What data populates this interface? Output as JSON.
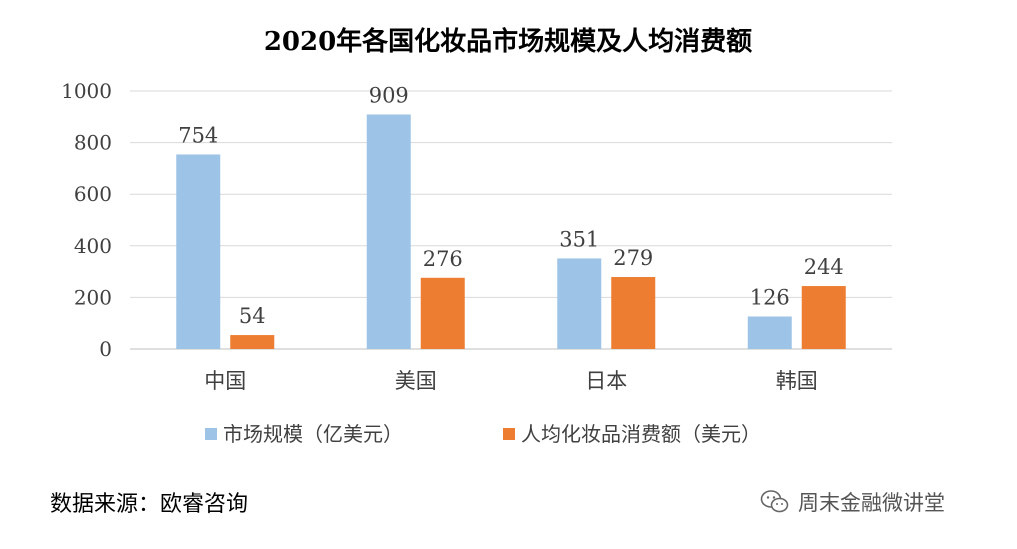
{
  "chart_data": {
    "type": "bar",
    "title": "2020年各国化妆品市场规模及人均消费额",
    "categories": [
      "中国",
      "美国",
      "日本",
      "韩国"
    ],
    "series": [
      {
        "name": "市场规模（亿美元）",
        "values": [
          754,
          909,
          351,
          126
        ],
        "color": "#9DC3E6"
      },
      {
        "name": "人均化妆品消费额（美元）",
        "values": [
          54,
          276,
          279,
          244
        ],
        "color": "#ED7D31"
      }
    ],
    "ylim": [
      0,
      1000
    ],
    "yticks": [
      0,
      200,
      400,
      600,
      800,
      1000
    ],
    "grid": true,
    "legend": "bottom",
    "data_labels": true
  },
  "footer": {
    "source": "数据来源：欧睿咨询",
    "watermark": "周末金融微讲堂",
    "watermark_icon": "wechat-icon"
  }
}
